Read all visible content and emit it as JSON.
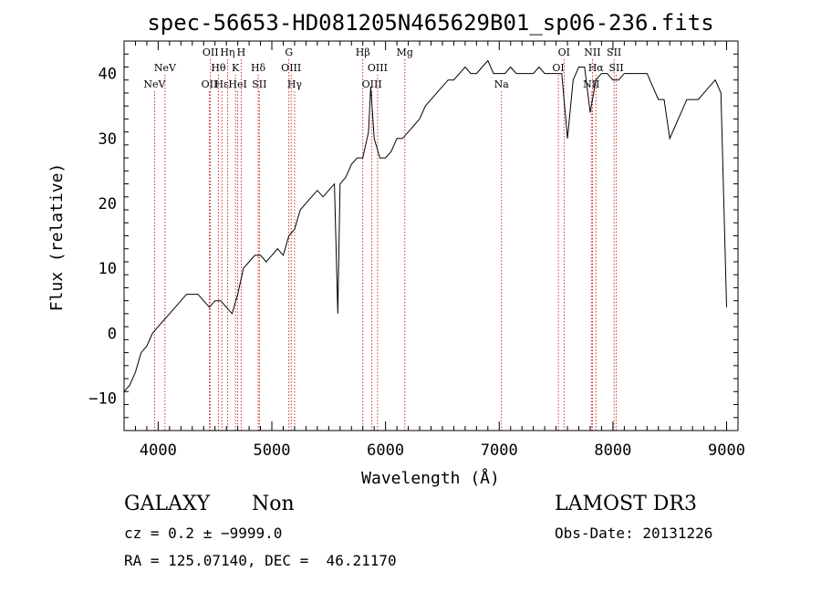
{
  "chart_data": {
    "type": "line",
    "title": "spec-56653-HD081205N465629B01_sp06-236.fits",
    "xlabel": "Wavelength (Å)",
    "ylabel": "Flux (relative)",
    "xlim": [
      3700,
      9100
    ],
    "ylim": [
      -15,
      45
    ],
    "x_ticks": [
      4000,
      5000,
      6000,
      7000,
      8000,
      9000
    ],
    "y_ticks": [
      -10,
      0,
      10,
      20,
      30,
      40
    ],
    "x_tick_labels": [
      "4000",
      "5000",
      "6000",
      "7000",
      "8000",
      "9000"
    ],
    "y_tick_labels": [
      "−10",
      "0",
      "10",
      "20",
      "30",
      "40"
    ],
    "grid": false,
    "series": [
      {
        "x": [
          3700,
          3750,
          3800,
          3850,
          3900,
          3950,
          4000,
          4050,
          4100,
          4150,
          4200,
          4250,
          4300,
          4350,
          4400,
          4450,
          4500,
          4550,
          4600,
          4650,
          4700,
          4750,
          4800,
          4850,
          4900,
          4950,
          5000,
          5050,
          5100,
          5150,
          5200,
          5250,
          5300,
          5350,
          5400,
          5450,
          5500,
          5550,
          5580,
          5600,
          5650,
          5700,
          5750,
          5800,
          5850,
          5870,
          5900,
          5950,
          6000,
          6050,
          6100,
          6150,
          6200,
          6250,
          6300,
          6350,
          6400,
          6450,
          6500,
          6550,
          6600,
          6650,
          6700,
          6750,
          6800,
          6850,
          6900,
          6950,
          7000,
          7050,
          7100,
          7150,
          7200,
          7250,
          7300,
          7350,
          7400,
          7450,
          7500,
          7550,
          7600,
          7650,
          7700,
          7750,
          7800,
          7850,
          7900,
          7950,
          8000,
          8050,
          8100,
          8150,
          8200,
          8250,
          8300,
          8350,
          8400,
          8450,
          8500,
          8550,
          8600,
          8650,
          8700,
          8750,
          8800,
          8850,
          8900,
          8950,
          9000
        ],
        "y": [
          -9,
          -8,
          -6,
          -3,
          -2,
          0,
          1,
          2,
          3,
          4,
          5,
          6,
          6,
          6,
          5,
          4,
          5,
          5,
          4,
          3,
          6,
          10,
          11,
          12,
          12,
          11,
          12,
          13,
          12,
          15,
          16,
          19,
          20,
          21,
          22,
          21,
          22,
          23,
          3,
          23,
          24,
          26,
          27,
          27,
          31,
          38,
          30,
          27,
          27,
          28,
          30,
          30,
          31,
          32,
          33,
          35,
          36,
          37,
          38,
          39,
          39,
          40,
          41,
          40,
          40,
          41,
          42,
          40,
          40,
          40,
          41,
          40,
          40,
          40,
          40,
          41,
          40,
          40,
          40,
          40,
          30,
          39,
          41,
          41,
          34,
          39,
          40,
          40,
          39,
          39,
          40,
          40,
          40,
          40,
          40,
          38,
          36,
          36,
          30,
          32,
          34,
          36,
          36,
          36,
          37,
          38,
          39,
          37,
          4
        ]
      }
    ],
    "lines": [
      {
        "x": 3968,
        "label": "NeV",
        "row": 2
      },
      {
        "x": 4060,
        "label": "NeV",
        "row": 1
      },
      {
        "x": 4450,
        "label": "OII",
        "row": 2
      },
      {
        "x": 4460,
        "label": "OII",
        "row": 0
      },
      {
        "x": 4530,
        "label": "Hθ",
        "row": 1
      },
      {
        "x": 4560,
        "label": "Hε",
        "row": 2
      },
      {
        "x": 4610,
        "label": "Hη",
        "row": 0
      },
      {
        "x": 4680,
        "label": "K",
        "row": 1
      },
      {
        "x": 4700,
        "label": "HeI",
        "row": 2
      },
      {
        "x": 4730,
        "label": "H",
        "row": 0
      },
      {
        "x": 4880,
        "label": "Hδ",
        "row": 1
      },
      {
        "x": 4890,
        "label": "SII",
        "row": 2
      },
      {
        "x": 5150,
        "label": "G",
        "row": 0
      },
      {
        "x": 5170,
        "label": "OIII",
        "row": 1
      },
      {
        "x": 5200,
        "label": "Hγ",
        "row": 2
      },
      {
        "x": 5800,
        "label": "Hβ",
        "row": 0
      },
      {
        "x": 5880,
        "label": "OIII",
        "row": 2
      },
      {
        "x": 5930,
        "label": "OIII",
        "row": 1
      },
      {
        "x": 6170,
        "label": "Mg",
        "row": 0
      },
      {
        "x": 7020,
        "label": "Na",
        "row": 2
      },
      {
        "x": 7520,
        "label": "OI",
        "row": 1
      },
      {
        "x": 7570,
        "label": "OI",
        "row": 0
      },
      {
        "x": 7810,
        "label": "NII",
        "row": 2
      },
      {
        "x": 7820,
        "label": "NII",
        "row": 0
      },
      {
        "x": 7850,
        "label": "Hα",
        "row": 1
      },
      {
        "x": 8010,
        "label": "SII",
        "row": 0
      },
      {
        "x": 8030,
        "label": "SII",
        "row": 1
      }
    ]
  },
  "info": {
    "class": "GALAXY",
    "subclass": "Non",
    "survey": "LAMOST DR3",
    "cz": "cz = 0.2 ± −9999.0",
    "obs_date": "Obs-Date: 20131226",
    "radec": "RA = 125.07140, DEC =  46.21170"
  },
  "colors": {
    "axes": "#000000",
    "spectrum": "#000000",
    "line_markers": "#c00000"
  }
}
